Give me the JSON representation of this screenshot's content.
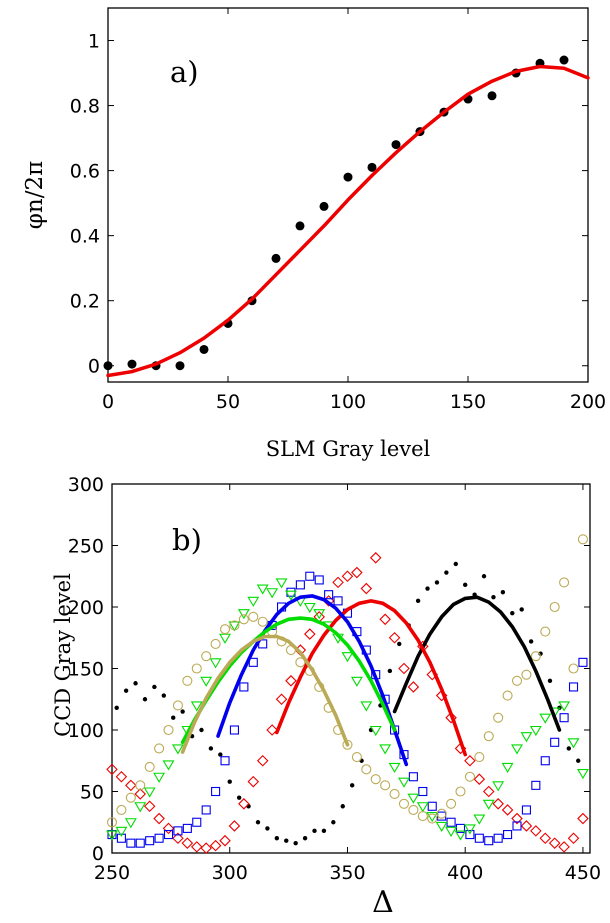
{
  "chart_data": [
    {
      "type": "scatter",
      "panel_label": "a)",
      "xlabel": "SLM Gray level",
      "ylabel": "φn/2π",
      "xlim": [
        0,
        200
      ],
      "ylim": [
        -0.05,
        1.1
      ],
      "xticks": [
        "0",
        "50",
        "100",
        "150",
        "200"
      ],
      "yticks": [
        "0",
        "0.2",
        "0.4",
        "0.6",
        "0.8",
        "1"
      ],
      "series": [
        {
          "kind": "points",
          "color": "#000000",
          "x": [
            0,
            10,
            20,
            30,
            40,
            50,
            60,
            70,
            80,
            90,
            100,
            110,
            120,
            130,
            140,
            150,
            160,
            170,
            180,
            190
          ],
          "y": [
            0.0,
            0.005,
            0.0,
            0.0,
            0.05,
            0.13,
            0.2,
            0.33,
            0.43,
            0.49,
            0.58,
            0.61,
            0.68,
            0.72,
            0.78,
            0.82,
            0.83,
            0.9,
            0.93,
            0.94
          ]
        },
        {
          "kind": "line",
          "color": "#ee0000",
          "x": [
            0,
            10,
            20,
            30,
            40,
            50,
            60,
            70,
            80,
            90,
            100,
            110,
            120,
            130,
            140,
            150,
            160,
            170,
            180,
            190,
            200
          ],
          "y": [
            -0.03,
            -0.018,
            0.005,
            0.04,
            0.085,
            0.14,
            0.205,
            0.28,
            0.355,
            0.43,
            0.51,
            0.585,
            0.655,
            0.72,
            0.78,
            0.835,
            0.875,
            0.905,
            0.92,
            0.915,
            0.885
          ]
        }
      ]
    },
    {
      "type": "scatter",
      "panel_label": "b)",
      "xlabel": "Δ",
      "ylabel": "CCD Gray level",
      "xlim": [
        250,
        453
      ],
      "ylim": [
        0,
        300
      ],
      "xticks": [
        "250",
        "300",
        "350",
        "400",
        "450"
      ],
      "yticks": [
        "0",
        "50",
        "100",
        "150",
        "200",
        "250",
        "300"
      ],
      "series": [
        {
          "kind": "points",
          "marker": "dot",
          "color": "#000000",
          "x": [
            252,
            256,
            260,
            264,
            268,
            272,
            276,
            280,
            284,
            288,
            292,
            296,
            300,
            304,
            308,
            312,
            316,
            320,
            324,
            328,
            332,
            336,
            340,
            344,
            348,
            352,
            356,
            360,
            364,
            368,
            372,
            376,
            380,
            384,
            388,
            392,
            396,
            400,
            404,
            408,
            412,
            416,
            420,
            424,
            428,
            432,
            436,
            440,
            444,
            448
          ],
          "y": [
            118,
            132,
            138,
            125,
            135,
            128,
            110,
            115,
            95,
            100,
            85,
            80,
            58,
            45,
            38,
            25,
            20,
            12,
            10,
            8,
            12,
            18,
            18,
            25,
            38,
            55,
            75,
            100,
            120,
            148,
            170,
            185,
            205,
            215,
            220,
            228,
            235,
            218,
            210,
            225,
            208,
            212,
            195,
            198,
            172,
            162,
            140,
            118,
            85,
            75
          ]
        },
        {
          "kind": "points",
          "marker": "diamond",
          "color": "#ee0000",
          "x": [
            250,
            254,
            258,
            262,
            266,
            270,
            274,
            278,
            282,
            286,
            290,
            294,
            298,
            302,
            306,
            310,
            314,
            318,
            322,
            326,
            330,
            334,
            338,
            342,
            346,
            350,
            354,
            358,
            362,
            366,
            370,
            374,
            378,
            382,
            386,
            390,
            394,
            398,
            402,
            406,
            410,
            414,
            418,
            422,
            426,
            430,
            434,
            438,
            442,
            446,
            450
          ],
          "y": [
            68,
            62,
            55,
            48,
            38,
            28,
            20,
            12,
            8,
            5,
            4,
            6,
            10,
            22,
            40,
            58,
            75,
            100,
            125,
            140,
            165,
            178,
            192,
            205,
            220,
            225,
            228,
            215,
            240,
            190,
            175,
            150,
            135,
            168,
            145,
            128,
            110,
            85,
            75,
            60,
            50,
            40,
            35,
            28,
            22,
            18,
            12,
            8,
            5,
            12,
            28
          ]
        },
        {
          "kind": "points",
          "marker": "square",
          "color": "#0000ee",
          "x": [
            250,
            254,
            258,
            262,
            266,
            270,
            274,
            278,
            282,
            286,
            290,
            294,
            298,
            302,
            306,
            310,
            314,
            318,
            322,
            326,
            330,
            334,
            338,
            342,
            346,
            350,
            354,
            358,
            362,
            366,
            370,
            374,
            378,
            382,
            386,
            390,
            394,
            398,
            402,
            406,
            410,
            414,
            418,
            422,
            426,
            430,
            434,
            438,
            442,
            446,
            450
          ],
          "y": [
            15,
            12,
            8,
            8,
            10,
            12,
            15,
            18,
            20,
            25,
            35,
            50,
            75,
            100,
            135,
            155,
            170,
            185,
            200,
            212,
            218,
            225,
            222,
            210,
            205,
            195,
            180,
            165,
            145,
            125,
            100,
            80,
            62,
            50,
            38,
            30,
            25,
            20,
            15,
            12,
            10,
            12,
            15,
            22,
            35,
            55,
            75,
            90,
            110,
            135,
            155
          ]
        },
        {
          "kind": "points",
          "marker": "triangle-down",
          "color": "#00dd00",
          "x": [
            250,
            254,
            258,
            262,
            266,
            270,
            274,
            278,
            282,
            286,
            290,
            294,
            298,
            302,
            306,
            310,
            314,
            318,
            322,
            326,
            330,
            334,
            338,
            342,
            346,
            350,
            354,
            358,
            362,
            366,
            370,
            374,
            378,
            382,
            386,
            390,
            394,
            398,
            402,
            406,
            410,
            414,
            418,
            422,
            426,
            430,
            434,
            438,
            442,
            446,
            450
          ],
          "y": [
            15,
            18,
            25,
            38,
            50,
            62,
            72,
            85,
            100,
            120,
            140,
            155,
            175,
            185,
            195,
            205,
            215,
            212,
            220,
            210,
            205,
            200,
            195,
            185,
            175,
            160,
            140,
            120,
            100,
            85,
            70,
            58,
            45,
            38,
            30,
            22,
            18,
            15,
            20,
            28,
            40,
            55,
            70,
            85,
            95,
            100,
            110,
            115,
            120,
            90,
            65
          ]
        },
        {
          "kind": "points",
          "marker": "circle",
          "color": "#bbaa55",
          "x": [
            250,
            254,
            258,
            262,
            266,
            270,
            274,
            278,
            282,
            286,
            290,
            294,
            298,
            302,
            306,
            310,
            314,
            318,
            322,
            326,
            330,
            334,
            338,
            342,
            346,
            350,
            354,
            358,
            362,
            366,
            370,
            374,
            378,
            382,
            386,
            390,
            394,
            398,
            402,
            406,
            410,
            414,
            418,
            422,
            426,
            430,
            434,
            438,
            442,
            446,
            450
          ],
          "y": [
            25,
            35,
            45,
            55,
            70,
            85,
            100,
            120,
            140,
            150,
            160,
            170,
            182,
            185,
            190,
            192,
            188,
            180,
            172,
            165,
            155,
            148,
            135,
            118,
            100,
            88,
            78,
            68,
            60,
            55,
            48,
            40,
            35,
            30,
            28,
            32,
            40,
            50,
            62,
            78,
            95,
            110,
            128,
            140,
            145,
            160,
            180,
            200,
            220,
            150,
            255
          ]
        },
        {
          "kind": "line",
          "color": "#000000",
          "x": [
            370,
            375,
            380,
            385,
            390,
            395,
            400,
            405,
            410,
            415,
            420,
            425,
            430,
            435,
            440
          ],
          "y": [
            115,
            138,
            160,
            178,
            192,
            202,
            207,
            208,
            204,
            196,
            184,
            168,
            148,
            125,
            100
          ]
        },
        {
          "kind": "line",
          "color": "#ee0000",
          "x": [
            320,
            325,
            330,
            335,
            340,
            345,
            350,
            355,
            360,
            365,
            370,
            375,
            380,
            385,
            390,
            395,
            400
          ],
          "y": [
            98,
            122,
            143,
            162,
            177,
            189,
            198,
            203,
            205,
            203,
            197,
            187,
            173,
            155,
            133,
            108,
            80
          ]
        },
        {
          "kind": "line",
          "color": "#0000ee",
          "x": [
            295,
            300,
            305,
            310,
            315,
            320,
            325,
            330,
            335,
            340,
            345,
            350,
            355,
            360,
            365,
            370,
            375
          ],
          "y": [
            95,
            122,
            145,
            165,
            181,
            194,
            203,
            208,
            209,
            206,
            199,
            188,
            172,
            152,
            128,
            100,
            72
          ]
        },
        {
          "kind": "line",
          "color": "#00dd00",
          "x": [
            280,
            285,
            290,
            295,
            300,
            305,
            310,
            315,
            320,
            325,
            330,
            335,
            340,
            345,
            350,
            355,
            360,
            365,
            370
          ],
          "y": [
            90,
            108,
            124,
            139,
            152,
            163,
            172,
            180,
            186,
            190,
            191,
            190,
            186,
            179,
            169,
            156,
            140,
            121,
            100
          ]
        },
        {
          "kind": "line",
          "color": "#bbaa55",
          "x": [
            280,
            285,
            290,
            295,
            300,
            305,
            310,
            315,
            320,
            325,
            330,
            335,
            340,
            345,
            350
          ],
          "y": [
            82,
            106,
            126,
            142,
            155,
            165,
            172,
            176,
            176,
            172,
            163,
            149,
            132,
            112,
            88
          ]
        }
      ]
    }
  ]
}
